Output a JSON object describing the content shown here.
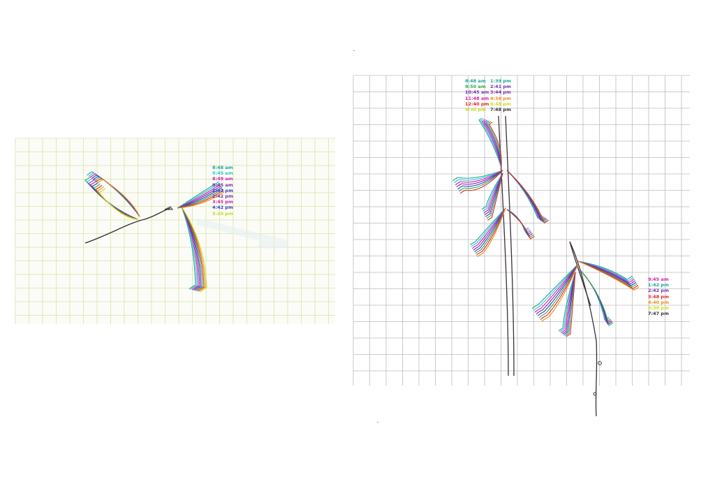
{
  "palette": {
    "teal": "#18a89a",
    "cyan": "#2ec4d8",
    "magenta": "#d81ca8",
    "purple": "#7a2bb0",
    "blue": "#2f3fd0",
    "orange": "#f08a1c",
    "lime": "#c8dc1a",
    "green": "#2fae3a",
    "red": "#e02828",
    "black": "#333333",
    "stem": "#3a2e36"
  },
  "left_drawing": {
    "grid_color": "#d6e4a6",
    "legend": [
      {
        "text": "8:48 am",
        "color": "teal"
      },
      {
        "text": "9:45 am",
        "color": "cyan"
      },
      {
        "text": "8:49 am",
        "color": "magenta"
      },
      {
        "text": "9:45 am",
        "color": "purple"
      },
      {
        "text": "1:42 pm",
        "color": "blue"
      },
      {
        "text": "2:42 pm",
        "color": "purple"
      },
      {
        "text": "3:45 pm",
        "color": "magenta"
      },
      {
        "text": "4:42 pm",
        "color": "blue"
      },
      {
        "text": "9:30 pm",
        "color": "lime"
      }
    ]
  },
  "right_drawing": {
    "grid_color": "#bdbdbd",
    "legend_top_col1": [
      {
        "text": "8:48 am",
        "color": "teal"
      },
      {
        "text": "9:50 am",
        "color": "green"
      },
      {
        "text": "10:45 am",
        "color": "purple"
      },
      {
        "text": "11:48 am",
        "color": "magenta"
      },
      {
        "text": "12:40 pm",
        "color": "red"
      },
      {
        "text": "9:30 pm",
        "color": "lime"
      }
    ],
    "legend_top_col2": [
      {
        "text": "1:39 pm",
        "color": "teal"
      },
      {
        "text": "2:41 pm",
        "color": "purple"
      },
      {
        "text": "3:44 pm",
        "color": "purple"
      },
      {
        "text": "4:36 pm",
        "color": "orange"
      },
      {
        "text": "6:48 pm",
        "color": "lime"
      },
      {
        "text": "7:48 pm",
        "color": "black"
      }
    ],
    "legend_side": [
      {
        "text": "9:45 am",
        "color": "magenta"
      },
      {
        "text": "1:42 pm",
        "color": "teal"
      },
      {
        "text": "2:42 pm",
        "color": "purple"
      },
      {
        "text": "3:48 pm",
        "color": "red"
      },
      {
        "text": "4:40 pm",
        "color": "orange"
      },
      {
        "text": "5:30 pm",
        "color": "lime"
      },
      {
        "text": "7:47 pm",
        "color": "black"
      }
    ]
  }
}
